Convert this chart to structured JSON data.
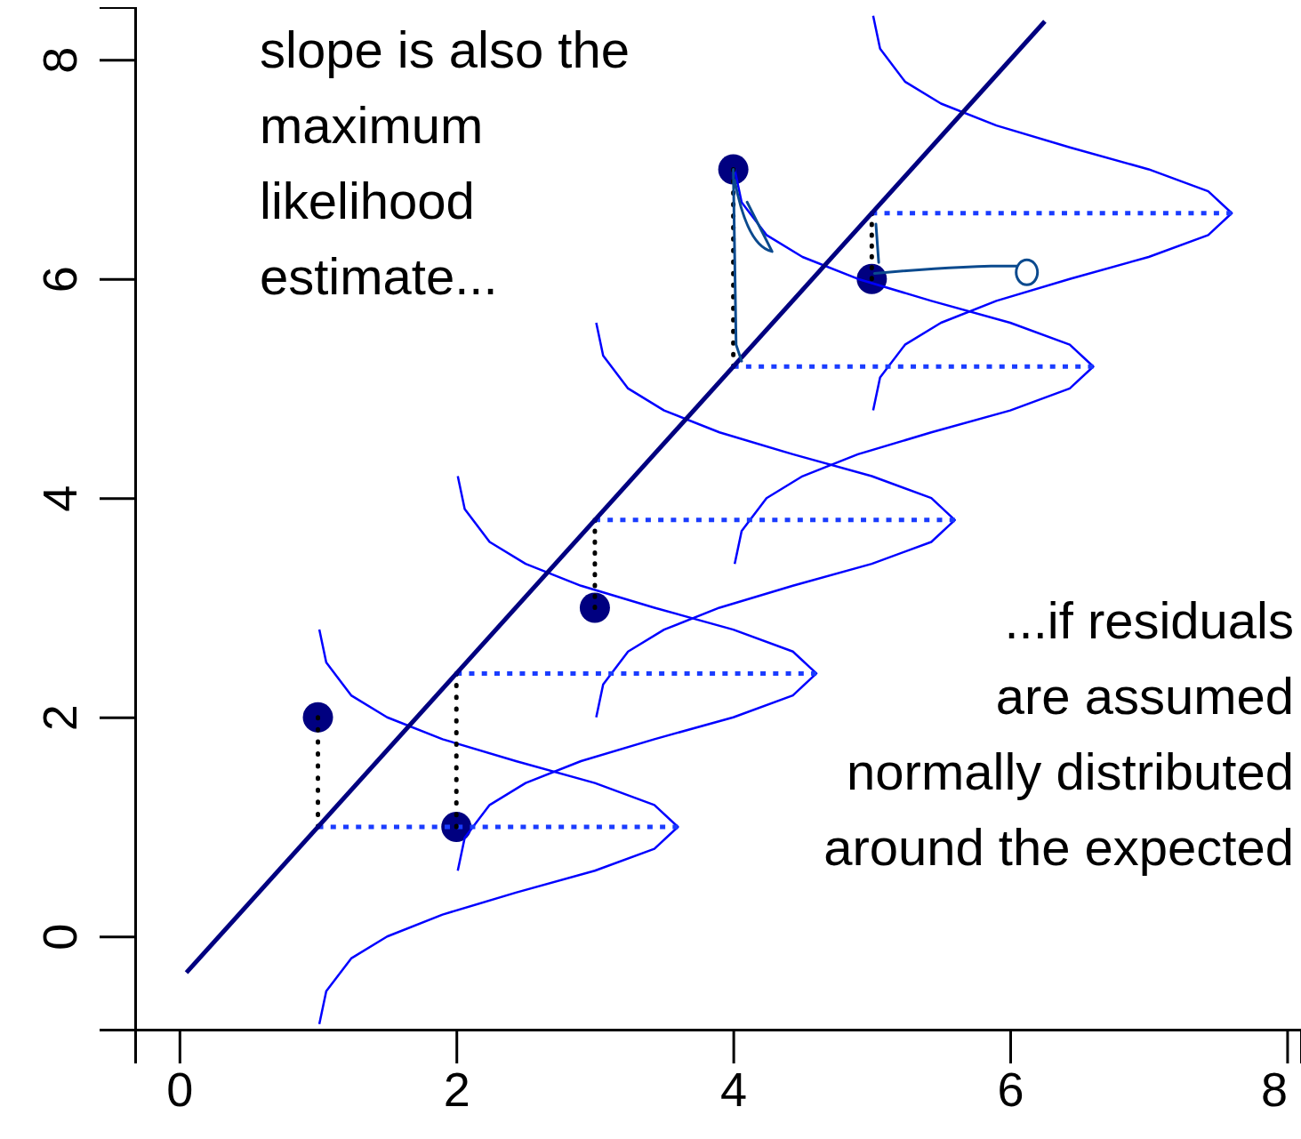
{
  "chart_data": {
    "type": "line",
    "xlim": [
      -0.32,
      8.1
    ],
    "ylim": [
      -0.85,
      8.48
    ],
    "xticks": [
      0,
      2,
      4,
      6,
      8
    ],
    "yticks": [
      0,
      2,
      4,
      6,
      8
    ],
    "grid": false,
    "annotations": [
      "slope is also the\nmaximum\nlikelihood\nestimate...",
      "...if residuals\nare assumed\nnormally distributed\naround the expected"
    ],
    "series": [
      {
        "type": "line",
        "color": "#0000ff",
        "line_style": "solid",
        "x": [
          1.01,
          1.06,
          1.24,
          1.5,
          1.9,
          2.43,
          3,
          3.43,
          3.6,
          3.43,
          3,
          2.43,
          1.9,
          1.5,
          1.24,
          1.06,
          1.01
        ],
        "values": [
          -0.8,
          -0.5,
          -0.2,
          0,
          0.2,
          0.4,
          0.6,
          0.8,
          1,
          1.2,
          1.4,
          1.6,
          1.8,
          2,
          2.2,
          2.5,
          2.8
        ]
      },
      {
        "type": "line",
        "color": "#0000ff",
        "line_style": "solid",
        "x": [
          2.01,
          2.06,
          2.24,
          2.5,
          2.9,
          3.43,
          4,
          4.43,
          4.6,
          4.43,
          4,
          3.43,
          2.9,
          2.5,
          2.24,
          2.06,
          2.01
        ],
        "values": [
          0.6,
          0.9,
          1.2,
          1.4,
          1.6,
          1.8,
          2,
          2.2,
          2.4,
          2.6,
          2.8,
          3,
          3.2,
          3.4,
          3.6,
          3.9,
          4.2
        ]
      },
      {
        "type": "line",
        "color": "#0000ff",
        "line_style": "solid",
        "x": [
          3.01,
          3.06,
          3.24,
          3.5,
          3.9,
          4.43,
          5,
          5.43,
          5.6,
          5.43,
          5,
          4.43,
          3.9,
          3.5,
          3.24,
          3.06,
          3.01
        ],
        "values": [
          2,
          2.3,
          2.6,
          2.8,
          3,
          3.2,
          3.4,
          3.6,
          3.8,
          4,
          4.2,
          4.4,
          4.6,
          4.8,
          5,
          5.3,
          5.6
        ]
      },
      {
        "type": "line",
        "color": "#0000ff",
        "line_style": "solid",
        "x": [
          4.01,
          4.06,
          4.24,
          4.5,
          4.9,
          5.43,
          6,
          6.43,
          6.6,
          6.43,
          6,
          5.43,
          4.9,
          4.5,
          4.24,
          4.06,
          4.01
        ],
        "values": [
          3.4,
          3.7,
          4,
          4.2,
          4.4,
          4.6,
          4.8,
          5,
          5.2,
          5.4,
          5.6,
          5.8,
          6,
          6.2,
          6.4,
          6.7,
          7
        ]
      },
      {
        "type": "line",
        "color": "#0000ff",
        "line_style": "solid",
        "x": [
          5.01,
          5.06,
          5.24,
          5.5,
          5.9,
          6.43,
          7,
          7.43,
          7.6,
          7.43,
          7,
          6.43,
          5.9,
          5.5,
          5.24,
          5.06,
          5.01
        ],
        "values": [
          4.8,
          5.1,
          5.4,
          5.6,
          5.8,
          6,
          6.2,
          6.4,
          6.6,
          6.8,
          7,
          7.2,
          7.4,
          7.6,
          7.8,
          8.1,
          8.4
        ]
      },
      {
        "type": "line",
        "color": "#1a3cff",
        "line_style": "dotted",
        "x": [
          1,
          3.6
        ],
        "values": [
          1,
          1
        ]
      },
      {
        "type": "line",
        "color": "#1a3cff",
        "line_style": "dotted",
        "x": [
          2,
          4.6
        ],
        "values": [
          2.4,
          2.4
        ]
      },
      {
        "type": "line",
        "color": "#1a3cff",
        "line_style": "dotted",
        "x": [
          3,
          5.6
        ],
        "values": [
          3.8,
          3.8
        ]
      },
      {
        "type": "line",
        "color": "#1a3cff",
        "line_style": "dotted",
        "x": [
          4,
          6.6
        ],
        "values": [
          5.2,
          5.2
        ]
      },
      {
        "type": "line",
        "color": "#1a3cff",
        "line_style": "dotted",
        "x": [
          5,
          7.6
        ],
        "values": [
          6.6,
          6.6
        ]
      },
      {
        "type": "line",
        "color": "#000000",
        "line_style": "dotted",
        "x": [
          1,
          1
        ],
        "values": [
          2,
          1
        ]
      },
      {
        "type": "line",
        "color": "#000000",
        "line_style": "dotted",
        "x": [
          2,
          2
        ],
        "values": [
          1,
          2.4
        ]
      },
      {
        "type": "line",
        "color": "#000000",
        "line_style": "dotted",
        "x": [
          3,
          3
        ],
        "values": [
          3,
          3.8
        ]
      },
      {
        "type": "line",
        "color": "#000000",
        "line_style": "dotted",
        "x": [
          4,
          4
        ],
        "values": [
          7,
          5.2
        ]
      },
      {
        "type": "line",
        "color": "#000000",
        "line_style": "dotted",
        "x": [
          5,
          5
        ],
        "values": [
          6,
          6.6
        ]
      },
      {
        "type": "line",
        "color": "#000080",
        "line_style": "solid",
        "x": [
          0.05,
          6.25
        ],
        "values": [
          -0.33,
          8.35
        ]
      },
      {
        "type": "scatter",
        "color": "#000080",
        "marker": "circle",
        "x": [
          1,
          2,
          3,
          4,
          5
        ],
        "values": [
          2,
          1,
          3,
          7,
          6
        ]
      }
    ]
  }
}
